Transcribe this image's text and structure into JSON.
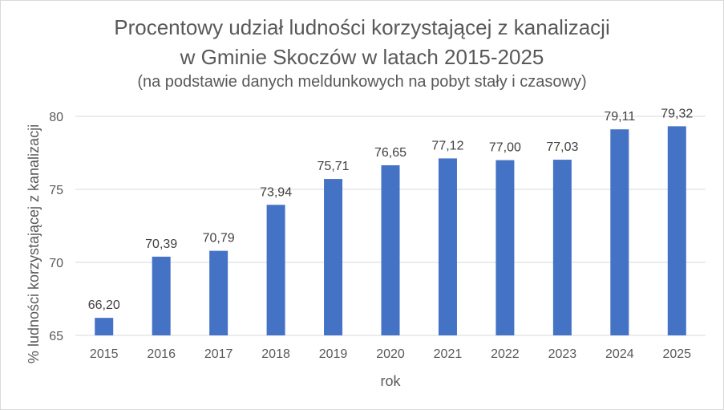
{
  "chart_data": {
    "type": "bar",
    "title_lines": [
      "Procentowy udział ludności korzystającej z kanalizacji",
      "w Gminie Skoczów  w latach 2015-2025"
    ],
    "subtitle": "(na podstawie danych meldunkowych na pobyt stały i czasowy)",
    "xlabel": "rok",
    "ylabel": "% ludności korzystającej z kanalizacji",
    "categories": [
      "2015",
      "2016",
      "2017",
      "2018",
      "2019",
      "2020",
      "2021",
      "2022",
      "2023",
      "2024",
      "2025"
    ],
    "values": [
      66.2,
      70.39,
      70.79,
      73.94,
      75.71,
      76.65,
      77.12,
      77.0,
      77.03,
      79.11,
      79.32
    ],
    "data_labels": [
      "66,20",
      "70,39",
      "70,79",
      "73,94",
      "75,71",
      "76,65",
      "77,12",
      "77,00",
      "77,03",
      "79,11",
      "79,32"
    ],
    "ylim": [
      65,
      80
    ],
    "yticks": [
      65,
      70,
      75,
      80
    ],
    "ytick_labels": [
      "65",
      "70",
      "75",
      "80"
    ],
    "grid": true,
    "legend": "none",
    "bar_color": "#4472c4",
    "grid_color": "#d9d9d9",
    "text_color": "#595959"
  }
}
